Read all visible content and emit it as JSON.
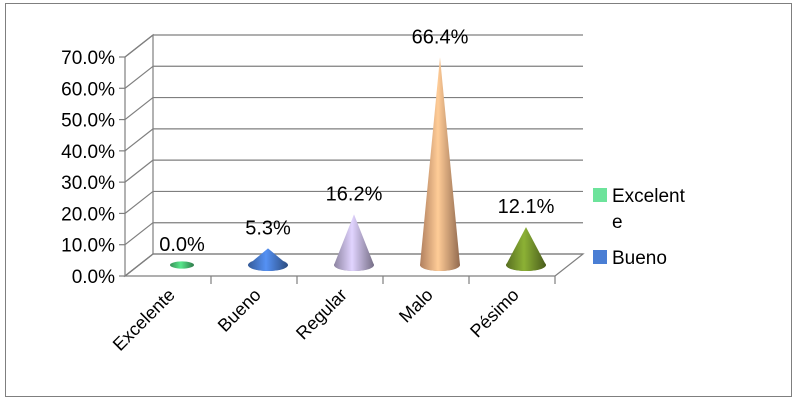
{
  "chart_data": {
    "type": "bar",
    "subtype": "3d-cone",
    "categories": [
      "Excelente",
      "Bueno",
      "Regular",
      "Malo",
      "Pésimo"
    ],
    "values": [
      0.0,
      5.3,
      16.2,
      66.4,
      12.1
    ],
    "data_labels": [
      "0.0%",
      "5.3%",
      "16.2%",
      "66.4%",
      "12.1%"
    ],
    "colors": [
      "#4dc97a",
      "#4a7ed4",
      "#c4b8e0",
      "#f4b183",
      "#7a9a2e"
    ],
    "ylim": [
      0,
      70
    ],
    "yticks": [
      "0.0%",
      "10.0%",
      "20.0%",
      "30.0%",
      "40.0%",
      "50.0%",
      "60.0%",
      "70.0%"
    ],
    "grid": true,
    "legend_position": "right",
    "legend": [
      {
        "label_lines": [
          "Excelent",
          "e"
        ],
        "color": "#6de39b"
      },
      {
        "label_lines": [
          "Bueno"
        ],
        "color": "#4a7ed4"
      }
    ]
  }
}
